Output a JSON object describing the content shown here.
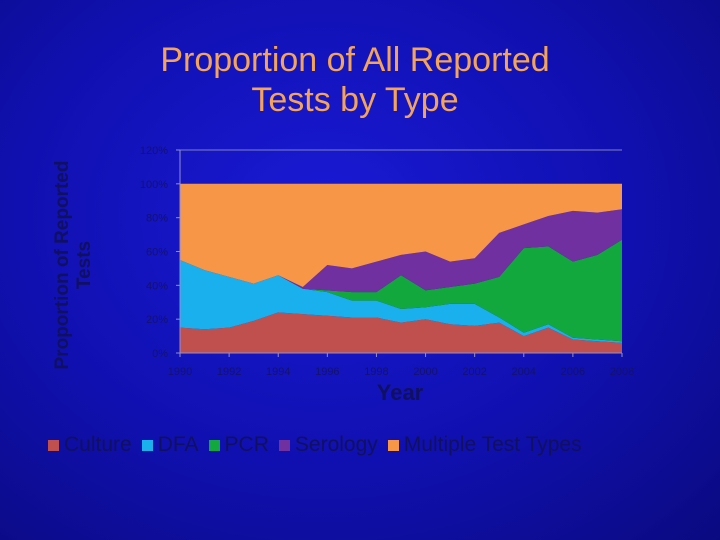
{
  "chart_data": {
    "type": "area",
    "stacked": true,
    "title": "Proportion of All Reported\nTests by Type",
    "xlabel": "Year",
    "ylabel": "Proportion of Reported\nTests",
    "x": [
      1990,
      1991,
      1992,
      1993,
      1994,
      1995,
      1996,
      1997,
      1998,
      1999,
      2000,
      2001,
      2002,
      2003,
      2004,
      2005,
      2006,
      2007,
      2008
    ],
    "xticks": [
      "1990",
      "1992",
      "1994",
      "1996",
      "1998",
      "2000",
      "2002",
      "2004",
      "2006",
      "2008"
    ],
    "yticks": [
      "0%",
      "20%",
      "40%",
      "60%",
      "80%",
      "100%",
      "120%"
    ],
    "ylim": [
      0,
      120
    ],
    "legend_position": "bottom",
    "series": [
      {
        "name": "Culture",
        "color": "#c0504d",
        "values": [
          15,
          14,
          15,
          19,
          24,
          23,
          22,
          21,
          21,
          18,
          20,
          17,
          16,
          18,
          10,
          15,
          8,
          7,
          6
        ]
      },
      {
        "name": "DFA",
        "color": "#1ab0ee",
        "values": [
          40,
          35,
          30,
          22,
          22,
          15,
          14,
          10,
          10,
          8,
          7,
          12,
          13,
          3,
          2,
          2,
          1,
          1,
          1
        ]
      },
      {
        "name": "PCR",
        "color": "#13a83e",
        "values": [
          0,
          0,
          0,
          0,
          0,
          0,
          1,
          5,
          5,
          20,
          10,
          10,
          12,
          24,
          50,
          46,
          45,
          50,
          60
        ]
      },
      {
        "name": "Serology",
        "color": "#7030a0",
        "values": [
          0,
          0,
          0,
          0,
          0,
          1,
          15,
          14,
          18,
          12,
          23,
          15,
          15,
          26,
          14,
          18,
          30,
          25,
          18
        ]
      },
      {
        "name": "Multiple Test Types",
        "color": "#f79646",
        "values": [
          45,
          51,
          55,
          59,
          54,
          61,
          48,
          50,
          46,
          42,
          40,
          46,
          44,
          29,
          24,
          19,
          16,
          17,
          15
        ]
      }
    ]
  }
}
